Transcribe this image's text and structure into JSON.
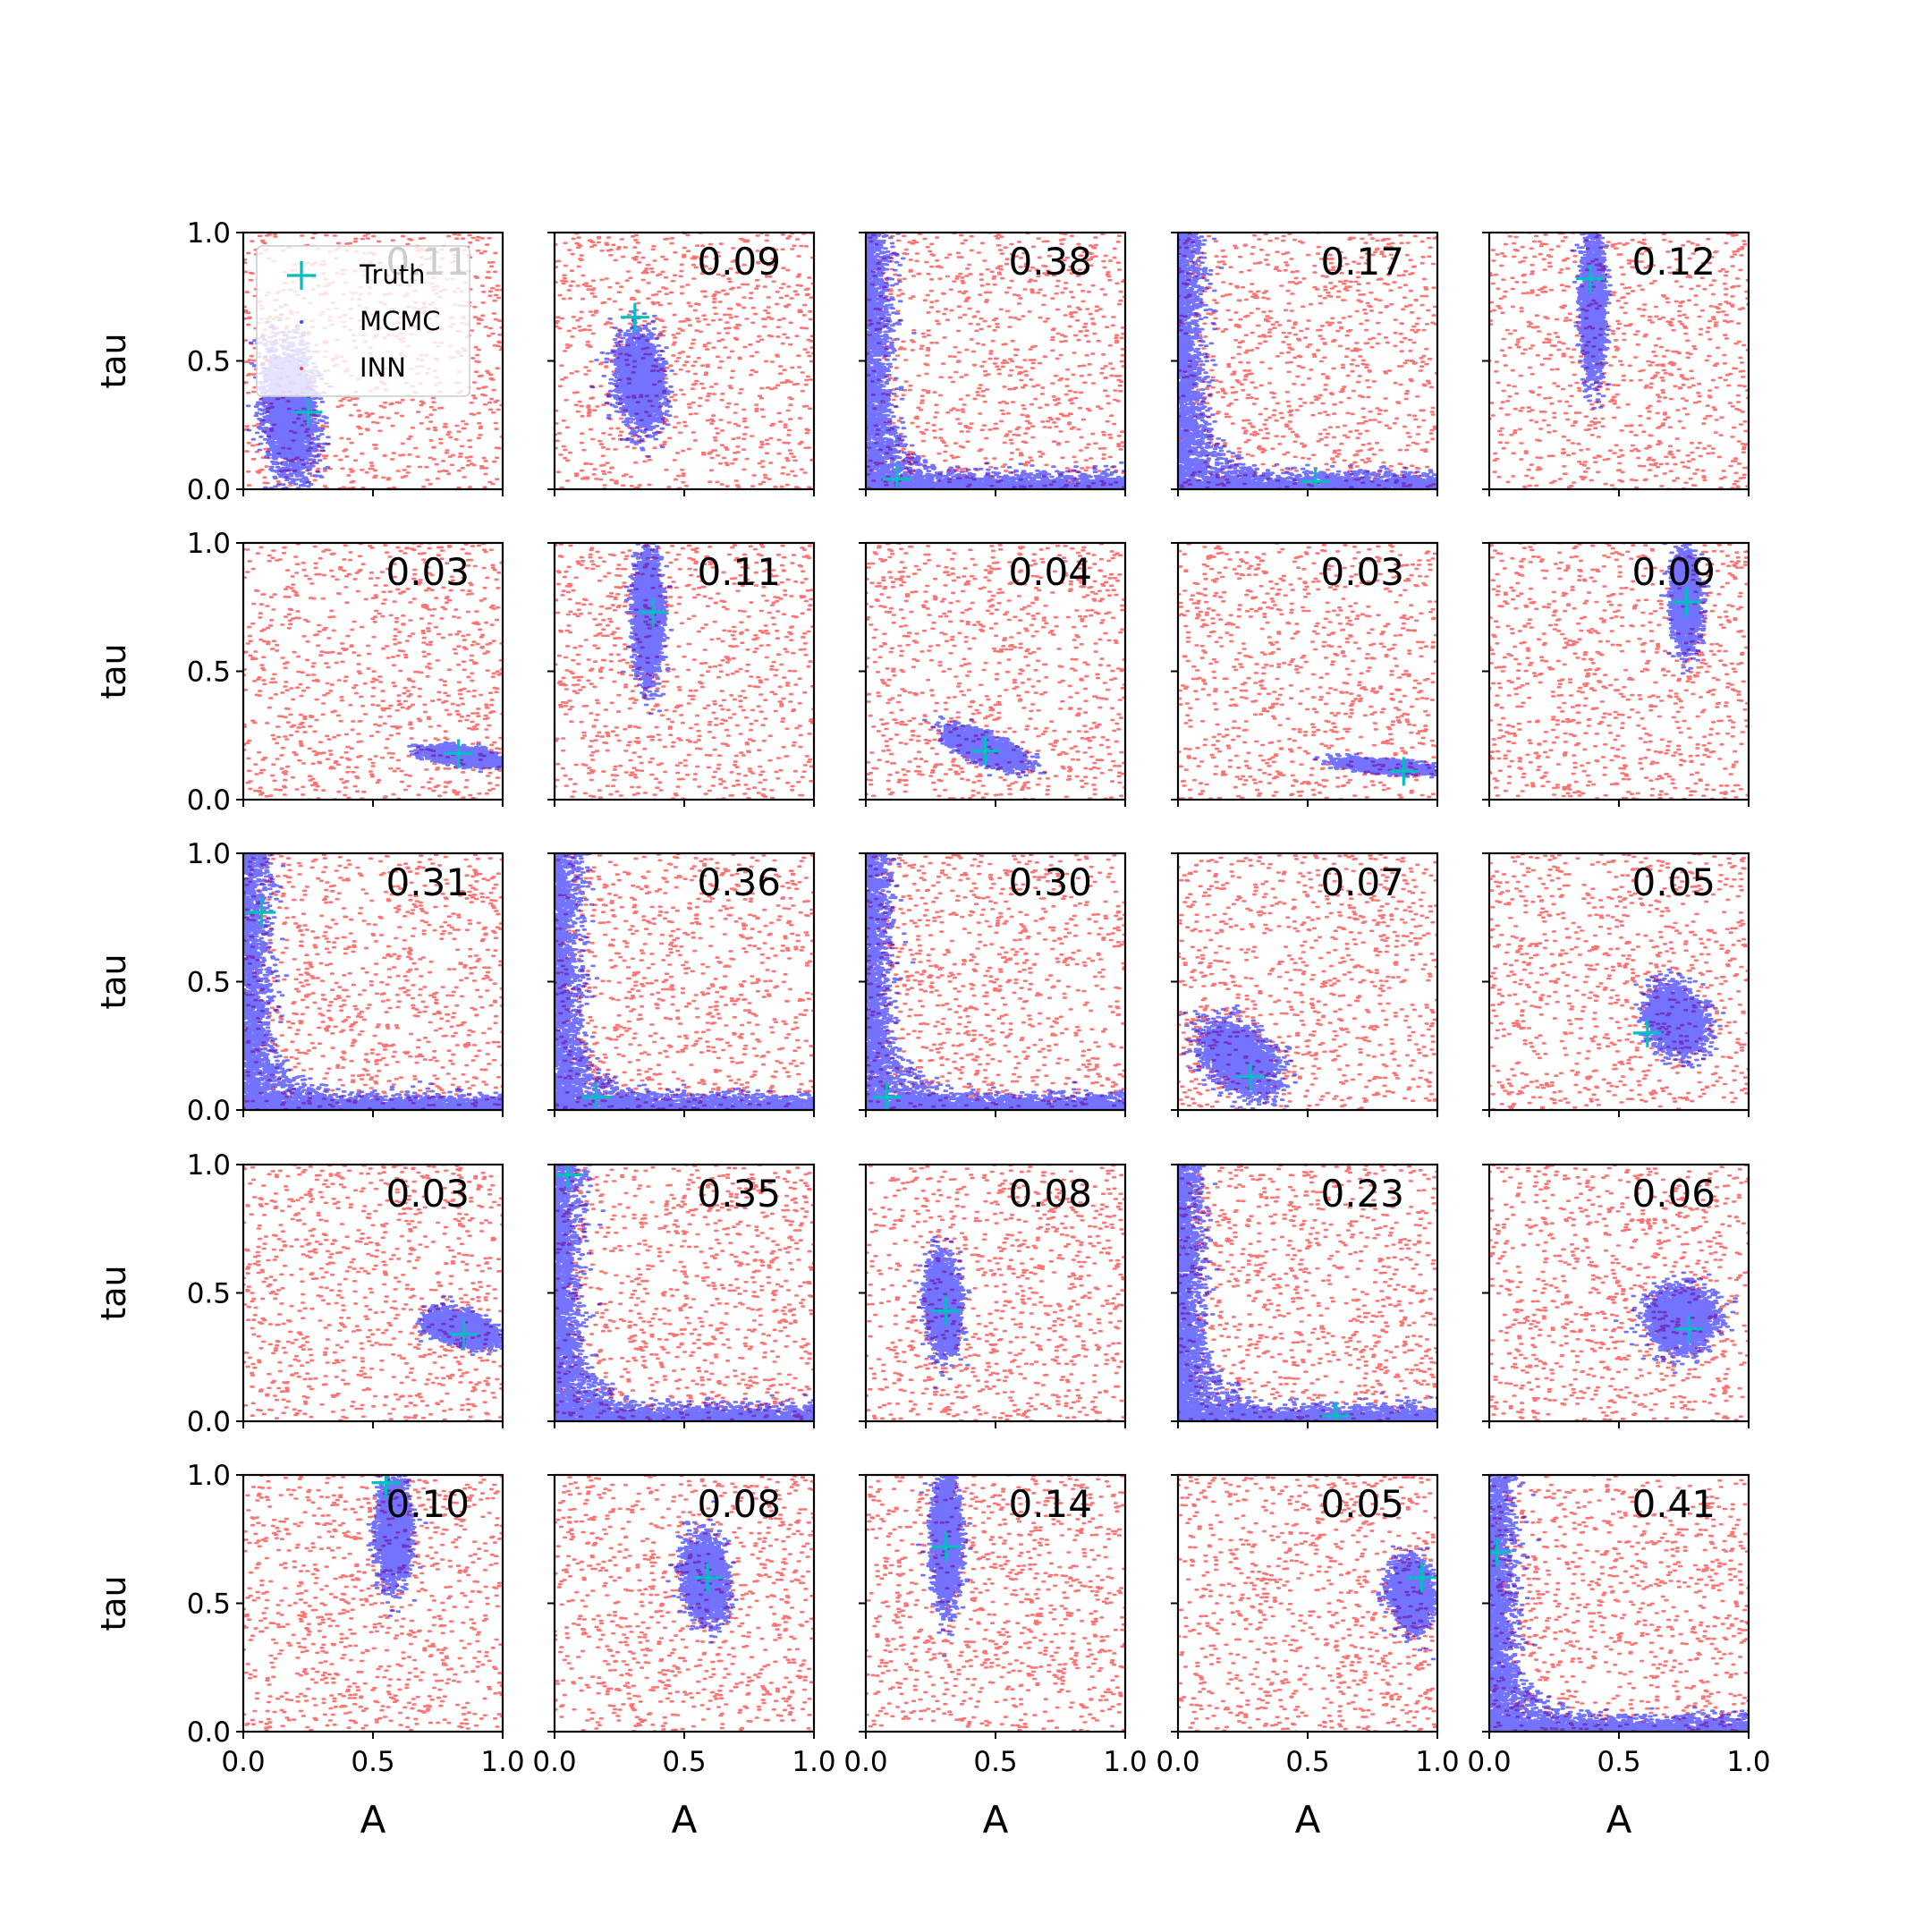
{
  "figure": {
    "xlabel": "A",
    "ylabel": "tau",
    "tick_labels": [
      "0.0",
      "0.5",
      "1.0"
    ],
    "legend": [
      {
        "label": "Truth",
        "color": "#00bfbf",
        "marker": "plus"
      },
      {
        "label": "MCMC",
        "color": "#0000ff",
        "marker": "dot"
      },
      {
        "label": "INN",
        "color": "#ff0000",
        "marker": "dot"
      }
    ]
  },
  "chart_data": [
    {
      "type": "scatter",
      "row": 1,
      "col": 1,
      "score": "0.11",
      "truth": {
        "A": 0.25,
        "tau": 0.3
      },
      "mcmc_shape": "blob",
      "mcmc_center": [
        0.18,
        0.3
      ],
      "mcmc_spread": [
        0.12,
        0.3
      ],
      "mcmc_tilt": -0.5,
      "xlabel": "A",
      "ylabel": "tau",
      "xlim": [
        0,
        1
      ],
      "ylim": [
        0,
        1
      ]
    },
    {
      "type": "scatter",
      "row": 1,
      "col": 2,
      "score": "0.09",
      "truth": {
        "A": 0.31,
        "tau": 0.67
      },
      "mcmc_shape": "blob",
      "mcmc_center": [
        0.33,
        0.42
      ],
      "mcmc_spread": [
        0.1,
        0.2
      ],
      "mcmc_tilt": -0.3,
      "xlim": [
        0,
        1
      ],
      "ylim": [
        0,
        1
      ]
    },
    {
      "type": "scatter",
      "row": 1,
      "col": 3,
      "score": "0.38",
      "truth": {
        "A": 0.12,
        "tau": 0.04
      },
      "mcmc_shape": "lshape",
      "xlim": [
        0,
        1
      ],
      "ylim": [
        0,
        1
      ]
    },
    {
      "type": "scatter",
      "row": 1,
      "col": 4,
      "score": "0.17",
      "truth": {
        "A": 0.53,
        "tau": 0.03
      },
      "mcmc_shape": "lshape",
      "xlim": [
        0,
        1
      ],
      "ylim": [
        0,
        1
      ]
    },
    {
      "type": "scatter",
      "row": 1,
      "col": 5,
      "score": "0.12",
      "truth": {
        "A": 0.39,
        "tau": 0.82
      },
      "mcmc_shape": "blob",
      "mcmc_center": [
        0.4,
        0.72
      ],
      "mcmc_spread": [
        0.05,
        0.3
      ],
      "mcmc_tilt": 0,
      "xlim": [
        0,
        1
      ],
      "ylim": [
        0,
        1
      ]
    },
    {
      "type": "scatter",
      "row": 2,
      "col": 1,
      "score": "0.03",
      "truth": {
        "A": 0.83,
        "tau": 0.18
      },
      "mcmc_shape": "blob",
      "mcmc_center": [
        0.84,
        0.17
      ],
      "mcmc_spread": [
        0.15,
        0.035
      ],
      "mcmc_tilt": -0.12,
      "xlim": [
        0,
        1
      ],
      "ylim": [
        0,
        1
      ]
    },
    {
      "type": "scatter",
      "row": 2,
      "col": 2,
      "score": "0.11",
      "truth": {
        "A": 0.38,
        "tau": 0.73
      },
      "mcmc_shape": "blob",
      "mcmc_center": [
        0.36,
        0.72
      ],
      "mcmc_spread": [
        0.06,
        0.28
      ],
      "mcmc_tilt": -0.1,
      "xlim": [
        0,
        1
      ],
      "ylim": [
        0,
        1
      ]
    },
    {
      "type": "scatter",
      "row": 2,
      "col": 3,
      "score": "0.04",
      "truth": {
        "A": 0.46,
        "tau": 0.19
      },
      "mcmc_shape": "blob",
      "mcmc_center": [
        0.46,
        0.2
      ],
      "mcmc_spread": [
        0.16,
        0.06
      ],
      "mcmc_tilt": -0.35,
      "xlim": [
        0,
        1
      ],
      "ylim": [
        0,
        1
      ]
    },
    {
      "type": "scatter",
      "row": 2,
      "col": 4,
      "score": "0.03",
      "truth": {
        "A": 0.87,
        "tau": 0.11
      },
      "mcmc_shape": "blob",
      "mcmc_center": [
        0.8,
        0.13
      ],
      "mcmc_spread": [
        0.18,
        0.025
      ],
      "mcmc_tilt": -0.08,
      "xlim": [
        0,
        1
      ],
      "ylim": [
        0,
        1
      ]
    },
    {
      "type": "scatter",
      "row": 2,
      "col": 5,
      "score": "0.09",
      "truth": {
        "A": 0.76,
        "tau": 0.77
      },
      "mcmc_shape": "blob",
      "mcmc_center": [
        0.76,
        0.78
      ],
      "mcmc_spread": [
        0.06,
        0.2
      ],
      "mcmc_tilt": -0.3,
      "xlim": [
        0,
        1
      ],
      "ylim": [
        0,
        1
      ]
    },
    {
      "type": "scatter",
      "row": 3,
      "col": 1,
      "score": "0.31",
      "truth": {
        "A": 0.07,
        "tau": 0.77
      },
      "mcmc_shape": "lshape",
      "xlim": [
        0,
        1
      ],
      "ylim": [
        0,
        1
      ]
    },
    {
      "type": "scatter",
      "row": 3,
      "col": 2,
      "score": "0.36",
      "truth": {
        "A": 0.16,
        "tau": 0.05
      },
      "mcmc_shape": "lshape",
      "xlim": [
        0,
        1
      ],
      "ylim": [
        0,
        1
      ]
    },
    {
      "type": "scatter",
      "row": 3,
      "col": 3,
      "score": "0.30",
      "truth": {
        "A": 0.08,
        "tau": 0.05
      },
      "mcmc_shape": "lshape",
      "xlim": [
        0,
        1
      ],
      "ylim": [
        0,
        1
      ]
    },
    {
      "type": "scatter",
      "row": 3,
      "col": 4,
      "score": "0.07",
      "truth": {
        "A": 0.28,
        "tau": 0.13
      },
      "mcmc_shape": "blob",
      "mcmc_center": [
        0.24,
        0.2
      ],
      "mcmc_spread": [
        0.16,
        0.14
      ],
      "mcmc_tilt": -0.4,
      "xlim": [
        0,
        1
      ],
      "ylim": [
        0,
        1
      ]
    },
    {
      "type": "scatter",
      "row": 3,
      "col": 5,
      "score": "0.05",
      "truth": {
        "A": 0.61,
        "tau": 0.3
      },
      "mcmc_shape": "blob",
      "mcmc_center": [
        0.72,
        0.35
      ],
      "mcmc_spread": [
        0.12,
        0.14
      ],
      "mcmc_tilt": -0.2,
      "xlim": [
        0,
        1
      ],
      "ylim": [
        0,
        1
      ]
    },
    {
      "type": "scatter",
      "row": 4,
      "col": 1,
      "score": "0.03",
      "truth": {
        "A": 0.85,
        "tau": 0.34
      },
      "mcmc_shape": "blob",
      "mcmc_center": [
        0.84,
        0.36
      ],
      "mcmc_spread": [
        0.14,
        0.07
      ],
      "mcmc_tilt": -0.25,
      "xlim": [
        0,
        1
      ],
      "ylim": [
        0,
        1
      ]
    },
    {
      "type": "scatter",
      "row": 4,
      "col": 2,
      "score": "0.35",
      "truth": {
        "A": 0.05,
        "tau": 0.96
      },
      "mcmc_shape": "lshape",
      "xlim": [
        0,
        1
      ],
      "ylim": [
        0,
        1
      ]
    },
    {
      "type": "scatter",
      "row": 4,
      "col": 3,
      "score": "0.08",
      "truth": {
        "A": 0.31,
        "tau": 0.43
      },
      "mcmc_shape": "blob",
      "mcmc_center": [
        0.3,
        0.45
      ],
      "mcmc_spread": [
        0.07,
        0.2
      ],
      "mcmc_tilt": -0.3,
      "xlim": [
        0,
        1
      ],
      "ylim": [
        0,
        1
      ]
    },
    {
      "type": "scatter",
      "row": 4,
      "col": 4,
      "score": "0.23",
      "truth": {
        "A": 0.61,
        "tau": 0.02
      },
      "mcmc_shape": "lshape",
      "xlim": [
        0,
        1
      ],
      "ylim": [
        0,
        1
      ]
    },
    {
      "type": "scatter",
      "row": 4,
      "col": 5,
      "score": "0.06",
      "truth": {
        "A": 0.77,
        "tau": 0.36
      },
      "mcmc_shape": "blob",
      "mcmc_center": [
        0.74,
        0.4
      ],
      "mcmc_spread": [
        0.14,
        0.14
      ],
      "mcmc_tilt": 0,
      "xlim": [
        0,
        1
      ],
      "ylim": [
        0,
        1
      ]
    },
    {
      "type": "scatter",
      "row": 5,
      "col": 1,
      "score": "0.10",
      "truth": {
        "A": 0.55,
        "tau": 0.97
      },
      "mcmc_shape": "blob",
      "mcmc_center": [
        0.58,
        0.78
      ],
      "mcmc_spread": [
        0.07,
        0.22
      ],
      "mcmc_tilt": -0.1,
      "xlim": [
        0,
        1
      ],
      "ylim": [
        0,
        1
      ]
    },
    {
      "type": "scatter",
      "row": 5,
      "col": 2,
      "score": "0.08",
      "truth": {
        "A": 0.59,
        "tau": 0.6
      },
      "mcmc_shape": "blob",
      "mcmc_center": [
        0.58,
        0.6
      ],
      "mcmc_spread": [
        0.09,
        0.17
      ],
      "mcmc_tilt": -0.2,
      "xlim": [
        0,
        1
      ],
      "ylim": [
        0,
        1
      ]
    },
    {
      "type": "scatter",
      "row": 5,
      "col": 3,
      "score": "0.14",
      "truth": {
        "A": 0.31,
        "tau": 0.72
      },
      "mcmc_shape": "blob",
      "mcmc_center": [
        0.31,
        0.74
      ],
      "mcmc_spread": [
        0.06,
        0.28
      ],
      "mcmc_tilt": -0.05,
      "xlim": [
        0,
        1
      ],
      "ylim": [
        0,
        1
      ]
    },
    {
      "type": "scatter",
      "row": 5,
      "col": 4,
      "score": "0.05",
      "truth": {
        "A": 0.94,
        "tau": 0.6
      },
      "mcmc_shape": "blob",
      "mcmc_center": [
        0.9,
        0.54
      ],
      "mcmc_spread": [
        0.09,
        0.14
      ],
      "mcmc_tilt": -0.2,
      "xlim": [
        0,
        1
      ],
      "ylim": [
        0,
        1
      ]
    },
    {
      "type": "scatter",
      "row": 5,
      "col": 5,
      "score": "0.41",
      "truth": {
        "A": 0.03,
        "tau": 0.7
      },
      "mcmc_shape": "lshape",
      "xlim": [
        0,
        1
      ],
      "ylim": [
        0,
        1
      ]
    }
  ]
}
